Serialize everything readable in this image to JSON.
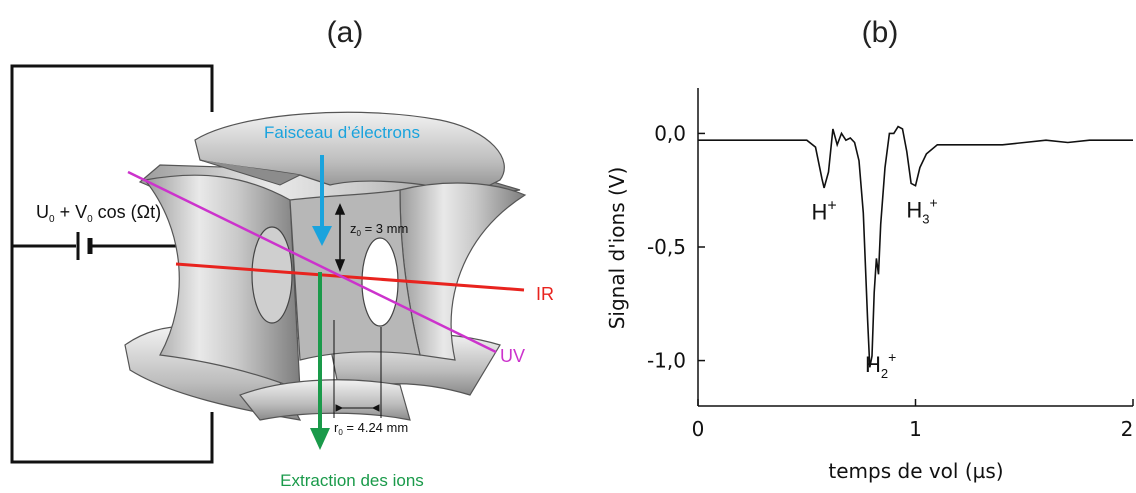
{
  "panels": {
    "a": {
      "label": "(a)"
    },
    "b": {
      "label": "(b)"
    }
  },
  "diagram": {
    "voltage_main": "U",
    "voltage_sub": "0",
    "voltage_rest": " + V",
    "voltage_sub2": "0",
    "voltage_tail": " cos (Ωt)",
    "electron_beam": "Faisceau d’électrons",
    "z0_main": "z",
    "z0_sub": "0",
    "z0_rest": " = 3 mm",
    "r0_main": "r",
    "r0_sub": "0",
    "r0_rest": " = 4.24 mm",
    "ir": "IR",
    "uv": "UV",
    "ion_extraction": "Extraction des ions",
    "colors": {
      "electron": "#1aa3dd",
      "ir": "#e8231e",
      "uv": "#cc33cc",
      "ions": "#1a9a4a"
    }
  },
  "chart_data": {
    "type": "line",
    "xlabel": "temps de vol (µs)",
    "ylabel": "Signal d'ions (V)",
    "xlim": [
      0,
      2
    ],
    "ylim": [
      -1.2,
      0.2
    ],
    "xticks": [
      0,
      1,
      2
    ],
    "xtick_labels": [
      "0",
      "1",
      "2"
    ],
    "yticks": [
      0.0,
      -0.5,
      -1.0
    ],
    "ytick_labels": [
      "0,0",
      "-0,5",
      "-1,0"
    ],
    "series": [
      {
        "x": [
          0.0,
          0.1,
          0.2,
          0.3,
          0.4,
          0.5,
          0.54,
          0.57,
          0.58,
          0.6,
          0.62,
          0.64,
          0.66,
          0.68,
          0.7,
          0.72,
          0.74,
          0.76,
          0.78,
          0.79,
          0.8,
          0.81,
          0.82,
          0.83,
          0.84,
          0.86,
          0.88,
          0.9,
          0.92,
          0.94,
          0.96,
          0.98,
          1.0,
          1.02,
          1.05,
          1.1,
          1.2,
          1.3,
          1.4,
          1.5,
          1.6,
          1.7,
          1.8,
          1.9,
          2.0
        ],
        "y": [
          -0.03,
          -0.03,
          -0.03,
          -0.03,
          -0.03,
          -0.03,
          -0.06,
          -0.2,
          -0.24,
          -0.17,
          0.02,
          -0.05,
          0.0,
          -0.03,
          -0.02,
          -0.04,
          -0.12,
          -0.35,
          -0.82,
          -1.03,
          -0.98,
          -0.7,
          -0.55,
          -0.62,
          -0.4,
          -0.15,
          0.0,
          0.0,
          0.03,
          0.02,
          -0.08,
          -0.22,
          -0.23,
          -0.15,
          -0.09,
          -0.05,
          -0.05,
          -0.05,
          -0.05,
          -0.04,
          -0.03,
          -0.04,
          -0.03,
          -0.03,
          -0.03
        ]
      }
    ],
    "annotations": [
      {
        "text": "H",
        "sup": "+",
        "x": 0.58,
        "y": -0.38
      },
      {
        "text": "H",
        "sub": "2",
        "sup": "+",
        "x": 0.84,
        "y": -1.05
      },
      {
        "text": "H",
        "sub": "3",
        "sup": "+",
        "x": 1.03,
        "y": -0.37
      }
    ],
    "grid": false
  }
}
